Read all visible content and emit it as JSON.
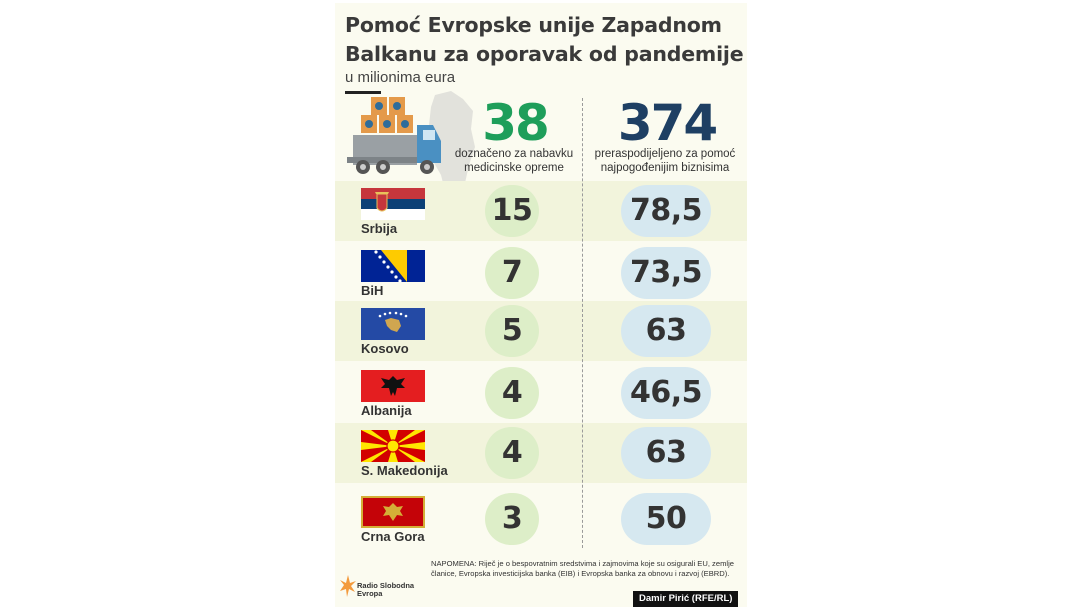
{
  "header": {
    "title_line1": "Pomoć Evropske unije Zapadnom",
    "title_line2": "Balkanu za oporavak od pandemije",
    "subtitle": "u milionima eura"
  },
  "totals": {
    "left_value": "38",
    "left_caption_line1": "doznačeno za nabavku",
    "left_caption_line2": "medicinske opreme",
    "right_value": "374",
    "right_caption_line1": "preraspodijeljeno za pomoć",
    "right_caption_line2": "najpogođenijim biznisima"
  },
  "chart_data": {
    "type": "table",
    "title": "Pomoć Evropske unije Zapadnom Balkanu za oporavak od pandemije",
    "subtitle": "u milionima eura",
    "categories": [
      "Srbija",
      "BiH",
      "Kosovo",
      "Albanija",
      "S. Makedonija",
      "Crna Gora"
    ],
    "series": [
      {
        "name": "doznačeno za nabavku medicinske opreme",
        "total": 38,
        "values": [
          15,
          7,
          5,
          4,
          4,
          3
        ],
        "labels": [
          "15",
          "7",
          "5",
          "4",
          "4",
          "3"
        ]
      },
      {
        "name": "preraspodijeljeno za pomoć najpogođenijim biznisima",
        "total": 374,
        "values": [
          78.5,
          73.5,
          63,
          46.5,
          63,
          50
        ],
        "labels": [
          "78,5",
          "73,5",
          "63",
          "46,5",
          "63",
          "50"
        ]
      }
    ]
  },
  "footer": {
    "note_line1": "NAPOMENA: Riječ je o bespovratnim sredstvima i zajmovima koje su osigurali EU, zemlje",
    "note_line2": "članice, Evropska investicijska banka (EIB) i Evropska banka za obnovu i razvoj (EBRD).",
    "logo_line1": "Radio Slobodna",
    "logo_line2": "Evropa",
    "credit": "Damir Pirić (RFE/RL)"
  },
  "colors": {
    "green": "#1e9e5a",
    "navy": "#1e3f63",
    "pill_green": "#ddeec8",
    "pill_blue": "#d6e8f0",
    "band": "#f2f4dc"
  }
}
